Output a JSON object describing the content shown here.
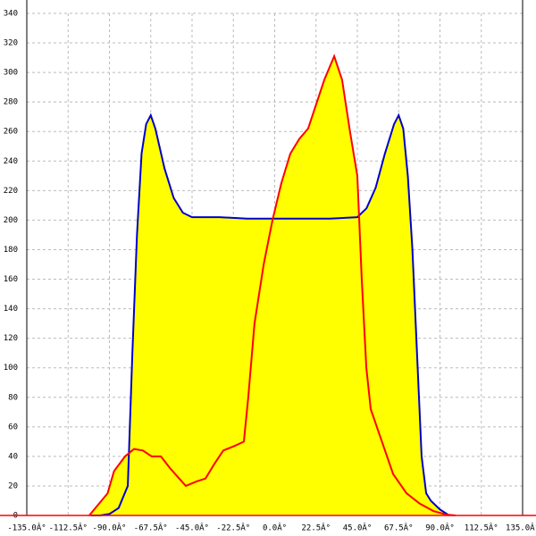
{
  "chart_data": {
    "type": "area",
    "fill_color": "#ffff00",
    "grid": true,
    "xlim": [
      -135,
      135
    ],
    "xticks": [
      {
        "value": -135,
        "label": "-135.0Â°"
      },
      {
        "value": -112.5,
        "label": "-112.5Â°"
      },
      {
        "value": -90,
        "label": "-90.0Â°"
      },
      {
        "value": -67.5,
        "label": "-67.5Â°"
      },
      {
        "value": -45,
        "label": "-45.0Â°"
      },
      {
        "value": -22.5,
        "label": "-22.5Â°"
      },
      {
        "value": 0,
        "label": "0.0Â°"
      },
      {
        "value": 22.5,
        "label": "22.5Â°"
      },
      {
        "value": 45,
        "label": "45.0Â°"
      },
      {
        "value": 67.5,
        "label": "67.5Â°"
      },
      {
        "value": 90,
        "label": "90.0Â°"
      },
      {
        "value": 112.5,
        "label": "112.5Â°"
      },
      {
        "value": 135,
        "label": "135.0Â°"
      }
    ],
    "ylim": [
      0,
      340
    ],
    "yticks": [
      0,
      20,
      40,
      60,
      80,
      100,
      120,
      140,
      160,
      180,
      200,
      220,
      240,
      260,
      280,
      300,
      320,
      340
    ],
    "series": [
      {
        "color": "#0000cc",
        "x": [
          -100,
          -95,
          -90,
          -85,
          -80,
          -77.5,
          -75,
          -72.5,
          -70,
          -67.5,
          -65,
          -60,
          -55,
          -50,
          -45,
          -30,
          -15,
          0,
          15,
          30,
          45,
          50,
          55,
          60,
          65,
          67.5,
          70,
          72.5,
          75,
          77.5,
          80,
          82.5,
          85,
          90,
          95
        ],
        "values": [
          0,
          0,
          1,
          5,
          20,
          110,
          190,
          245,
          265,
          271,
          262,
          235,
          215,
          205,
          202,
          202,
          201,
          201,
          201,
          201,
          202,
          208,
          222,
          245,
          265,
          271,
          262,
          230,
          180,
          110,
          40,
          15,
          10,
          4,
          0
        ]
      },
      {
        "color": "#ff0000",
        "x": [
          -101,
          -91,
          -87.5,
          -81.5,
          -76.6,
          -71.8,
          -67,
          -62,
          -57,
          -52,
          -48.4,
          -42.6,
          -37.7,
          -32.8,
          -28,
          -22,
          -16.8,
          -14.4,
          -11,
          -6,
          -1.2,
          3.6,
          8.5,
          13.4,
          18.2,
          23,
          27,
          32.4,
          36.7,
          41,
          45,
          47.4,
          49.9,
          52.3,
          57,
          64.5,
          71.8,
          79,
          86.4,
          93.7,
          98.5
        ],
        "values": [
          0,
          15,
          30,
          40,
          45,
          44,
          40,
          40,
          32,
          25,
          20,
          23,
          25,
          35,
          44,
          47,
          50,
          80,
          130,
          170,
          200,
          225,
          245,
          255,
          262,
          280,
          295,
          311,
          295,
          260,
          230,
          160,
          100,
          72,
          55,
          28,
          15,
          8,
          3,
          0.5,
          0
        ]
      }
    ]
  }
}
